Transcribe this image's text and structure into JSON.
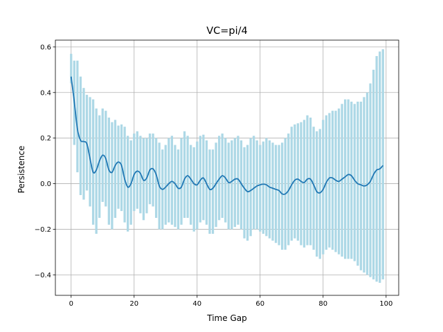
{
  "chart_data": {
    "type": "line",
    "title": "VC=pi/4",
    "xlabel": "Time Gap",
    "ylabel": "Persistence",
    "xlim": [
      -5,
      104
    ],
    "ylim": [
      -0.49,
      0.63
    ],
    "x_ticks": [
      0,
      20,
      40,
      60,
      80,
      100
    ],
    "x_tick_labels": [
      "0",
      "20",
      "40",
      "60",
      "80",
      "100"
    ],
    "y_ticks": [
      -0.4,
      -0.2,
      0.0,
      0.2,
      0.4,
      0.6
    ],
    "y_tick_labels": [
      "−0.4",
      "−0.2",
      "0.0",
      "0.2",
      "0.4",
      "0.6"
    ],
    "grid": true,
    "line_color": "#1f77b4",
    "band_color": "#add8e6",
    "mean_keypoints": [
      [
        0,
        0.47
      ],
      [
        1,
        0.36
      ],
      [
        2,
        0.24
      ],
      [
        3,
        0.19
      ],
      [
        4,
        0.185
      ],
      [
        5,
        0.175
      ],
      [
        6,
        0.11
      ],
      [
        7,
        0.05
      ],
      [
        8,
        0.06
      ],
      [
        9,
        0.1
      ],
      [
        10,
        0.125
      ],
      [
        11,
        0.11
      ],
      [
        12,
        0.06
      ],
      [
        13,
        0.05
      ],
      [
        14,
        0.08
      ],
      [
        15,
        0.095
      ],
      [
        16,
        0.08
      ],
      [
        17,
        0.02
      ],
      [
        18,
        -0.015
      ],
      [
        19,
        0.0
      ],
      [
        20,
        0.04
      ],
      [
        21,
        0.055
      ],
      [
        22,
        0.045
      ],
      [
        23,
        0.015
      ],
      [
        24,
        0.025
      ],
      [
        25,
        0.06
      ],
      [
        26,
        0.065
      ],
      [
        27,
        0.04
      ],
      [
        28,
        -0.01
      ],
      [
        29,
        -0.025
      ],
      [
        30,
        -0.015
      ],
      [
        31,
        0.0
      ],
      [
        32,
        0.01
      ],
      [
        33,
        0.0
      ],
      [
        34,
        -0.02
      ],
      [
        35,
        -0.015
      ],
      [
        36,
        0.02
      ],
      [
        37,
        0.035
      ],
      [
        38,
        0.02
      ],
      [
        39,
        0.0
      ],
      [
        40,
        -0.005
      ],
      [
        41,
        0.015
      ],
      [
        42,
        0.025
      ],
      [
        43,
        0.0
      ],
      [
        44,
        -0.025
      ],
      [
        45,
        -0.02
      ],
      [
        46,
        0.0
      ],
      [
        47,
        0.02
      ],
      [
        48,
        0.035
      ],
      [
        49,
        0.025
      ],
      [
        50,
        0.005
      ],
      [
        51,
        0.01
      ],
      [
        52,
        0.02
      ],
      [
        53,
        0.02
      ],
      [
        54,
        0.0
      ],
      [
        55,
        -0.02
      ],
      [
        56,
        -0.035
      ],
      [
        57,
        -0.03
      ],
      [
        58,
        -0.02
      ],
      [
        59,
        -0.01
      ],
      [
        60,
        -0.005
      ],
      [
        61,
        -0.002
      ],
      [
        62,
        -0.005
      ],
      [
        63,
        -0.015
      ],
      [
        64,
        -0.02
      ],
      [
        65,
        -0.025
      ],
      [
        66,
        -0.03
      ],
      [
        67,
        -0.045
      ],
      [
        68,
        -0.045
      ],
      [
        69,
        -0.03
      ],
      [
        70,
        -0.005
      ],
      [
        71,
        0.015
      ],
      [
        72,
        0.02
      ],
      [
        73,
        0.01
      ],
      [
        74,
        0.005
      ],
      [
        75,
        0.02
      ],
      [
        76,
        0.02
      ],
      [
        77,
        -0.005
      ],
      [
        78,
        -0.035
      ],
      [
        79,
        -0.04
      ],
      [
        80,
        -0.025
      ],
      [
        81,
        0.005
      ],
      [
        82,
        0.025
      ],
      [
        83,
        0.025
      ],
      [
        84,
        0.015
      ],
      [
        85,
        0.01
      ],
      [
        86,
        0.02
      ],
      [
        87,
        0.03
      ],
      [
        88,
        0.04
      ],
      [
        89,
        0.035
      ],
      [
        90,
        0.015
      ],
      [
        91,
        0.0
      ],
      [
        92,
        -0.005
      ],
      [
        93,
        -0.01
      ],
      [
        94,
        -0.005
      ],
      [
        95,
        0.01
      ],
      [
        96,
        0.04
      ],
      [
        97,
        0.06
      ],
      [
        98,
        0.065
      ],
      [
        99,
        0.08
      ]
    ],
    "upper_keypoints": [
      [
        0,
        0.57
      ],
      [
        1,
        0.54
      ],
      [
        2,
        0.54
      ],
      [
        3,
        0.47
      ],
      [
        4,
        0.42
      ],
      [
        5,
        0.39
      ],
      [
        6,
        0.38
      ],
      [
        7,
        0.37
      ],
      [
        8,
        0.33
      ],
      [
        9,
        0.3
      ],
      [
        10,
        0.33
      ],
      [
        11,
        0.32
      ],
      [
        12,
        0.29
      ],
      [
        13,
        0.27
      ],
      [
        14,
        0.28
      ],
      [
        15,
        0.255
      ],
      [
        16,
        0.26
      ],
      [
        17,
        0.25
      ],
      [
        18,
        0.21
      ],
      [
        19,
        0.19
      ],
      [
        20,
        0.22
      ],
      [
        21,
        0.23
      ],
      [
        22,
        0.21
      ],
      [
        23,
        0.2
      ],
      [
        24,
        0.2
      ],
      [
        25,
        0.22
      ],
      [
        26,
        0.22
      ],
      [
        27,
        0.2
      ],
      [
        28,
        0.18
      ],
      [
        29,
        0.15
      ],
      [
        30,
        0.17
      ],
      [
        31,
        0.2
      ],
      [
        32,
        0.21
      ],
      [
        33,
        0.17
      ],
      [
        34,
        0.15
      ],
      [
        35,
        0.2
      ],
      [
        36,
        0.23
      ],
      [
        37,
        0.21
      ],
      [
        38,
        0.17
      ],
      [
        39,
        0.16
      ],
      [
        40,
        0.185
      ],
      [
        41,
        0.21
      ],
      [
        42,
        0.215
      ],
      [
        43,
        0.19
      ],
      [
        44,
        0.15
      ],
      [
        45,
        0.15
      ],
      [
        46,
        0.18
      ],
      [
        47,
        0.21
      ],
      [
        48,
        0.22
      ],
      [
        49,
        0.2
      ],
      [
        50,
        0.18
      ],
      [
        51,
        0.19
      ],
      [
        52,
        0.2
      ],
      [
        53,
        0.21
      ],
      [
        54,
        0.19
      ],
      [
        55,
        0.16
      ],
      [
        56,
        0.17
      ],
      [
        57,
        0.2
      ],
      [
        58,
        0.21
      ],
      [
        59,
        0.19
      ],
      [
        60,
        0.17
      ],
      [
        61,
        0.185
      ],
      [
        62,
        0.2
      ],
      [
        63,
        0.19
      ],
      [
        64,
        0.18
      ],
      [
        65,
        0.17
      ],
      [
        66,
        0.17
      ],
      [
        67,
        0.18
      ],
      [
        68,
        0.2
      ],
      [
        69,
        0.22
      ],
      [
        70,
        0.25
      ],
      [
        71,
        0.26
      ],
      [
        72,
        0.265
      ],
      [
        73,
        0.27
      ],
      [
        74,
        0.28
      ],
      [
        75,
        0.3
      ],
      [
        76,
        0.29
      ],
      [
        77,
        0.25
      ],
      [
        78,
        0.23
      ],
      [
        79,
        0.24
      ],
      [
        80,
        0.28
      ],
      [
        81,
        0.3
      ],
      [
        82,
        0.31
      ],
      [
        83,
        0.32
      ],
      [
        84,
        0.32
      ],
      [
        85,
        0.33
      ],
      [
        86,
        0.35
      ],
      [
        87,
        0.37
      ],
      [
        88,
        0.37
      ],
      [
        89,
        0.36
      ],
      [
        90,
        0.35
      ],
      [
        91,
        0.36
      ],
      [
        92,
        0.36
      ],
      [
        93,
        0.38
      ],
      [
        94,
        0.4
      ],
      [
        95,
        0.44
      ],
      [
        96,
        0.5
      ],
      [
        97,
        0.56
      ],
      [
        98,
        0.58
      ],
      [
        99,
        0.59
      ]
    ],
    "lower_keypoints": [
      [
        0,
        0.44
      ],
      [
        1,
        0.17
      ],
      [
        2,
        0.05
      ],
      [
        3,
        -0.05
      ],
      [
        4,
        -0.07
      ],
      [
        5,
        -0.03
      ],
      [
        6,
        -0.1
      ],
      [
        7,
        -0.18
      ],
      [
        8,
        -0.22
      ],
      [
        9,
        -0.15
      ],
      [
        10,
        -0.08
      ],
      [
        11,
        -0.1
      ],
      [
        12,
        -0.18
      ],
      [
        13,
        -0.2
      ],
      [
        14,
        -0.15
      ],
      [
        15,
        -0.11
      ],
      [
        16,
        -0.12
      ],
      [
        17,
        -0.17
      ],
      [
        18,
        -0.21
      ],
      [
        19,
        -0.18
      ],
      [
        20,
        -0.12
      ],
      [
        21,
        -0.11
      ],
      [
        22,
        -0.13
      ],
      [
        23,
        -0.16
      ],
      [
        24,
        -0.13
      ],
      [
        25,
        -0.09
      ],
      [
        26,
        -0.1
      ],
      [
        27,
        -0.15
      ],
      [
        28,
        -0.2
      ],
      [
        29,
        -0.2
      ],
      [
        30,
        -0.18
      ],
      [
        31,
        -0.17
      ],
      [
        32,
        -0.18
      ],
      [
        33,
        -0.19
      ],
      [
        34,
        -0.2
      ],
      [
        35,
        -0.18
      ],
      [
        36,
        -0.15
      ],
      [
        37,
        -0.15
      ],
      [
        38,
        -0.18
      ],
      [
        39,
        -0.21
      ],
      [
        40,
        -0.2
      ],
      [
        41,
        -0.17
      ],
      [
        42,
        -0.16
      ],
      [
        43,
        -0.18
      ],
      [
        44,
        -0.22
      ],
      [
        45,
        -0.22
      ],
      [
        46,
        -0.19
      ],
      [
        47,
        -0.16
      ],
      [
        48,
        -0.15
      ],
      [
        49,
        -0.17
      ],
      [
        50,
        -0.2
      ],
      [
        51,
        -0.2
      ],
      [
        52,
        -0.19
      ],
      [
        53,
        -0.18
      ],
      [
        54,
        -0.2
      ],
      [
        55,
        -0.24
      ],
      [
        56,
        -0.25
      ],
      [
        57,
        -0.23
      ],
      [
        58,
        -0.2
      ],
      [
        59,
        -0.2
      ],
      [
        60,
        -0.21
      ],
      [
        61,
        -0.22
      ],
      [
        62,
        -0.23
      ],
      [
        63,
        -0.24
      ],
      [
        64,
        -0.25
      ],
      [
        65,
        -0.26
      ],
      [
        66,
        -0.27
      ],
      [
        67,
        -0.29
      ],
      [
        68,
        -0.29
      ],
      [
        69,
        -0.27
      ],
      [
        70,
        -0.25
      ],
      [
        71,
        -0.24
      ],
      [
        72,
        -0.25
      ],
      [
        73,
        -0.27
      ],
      [
        74,
        -0.28
      ],
      [
        75,
        -0.27
      ],
      [
        76,
        -0.27
      ],
      [
        77,
        -0.29
      ],
      [
        78,
        -0.32
      ],
      [
        79,
        -0.33
      ],
      [
        80,
        -0.31
      ],
      [
        81,
        -0.29
      ],
      [
        82,
        -0.28
      ],
      [
        83,
        -0.29
      ],
      [
        84,
        -0.3
      ],
      [
        85,
        -0.31
      ],
      [
        86,
        -0.32
      ],
      [
        87,
        -0.33
      ],
      [
        88,
        -0.33
      ],
      [
        89,
        -0.33
      ],
      [
        90,
        -0.34
      ],
      [
        91,
        -0.36
      ],
      [
        92,
        -0.38
      ],
      [
        93,
        -0.39
      ],
      [
        94,
        -0.4
      ],
      [
        95,
        -0.41
      ],
      [
        96,
        -0.42
      ],
      [
        97,
        -0.43
      ],
      [
        98,
        -0.435
      ],
      [
        99,
        -0.42
      ]
    ]
  }
}
